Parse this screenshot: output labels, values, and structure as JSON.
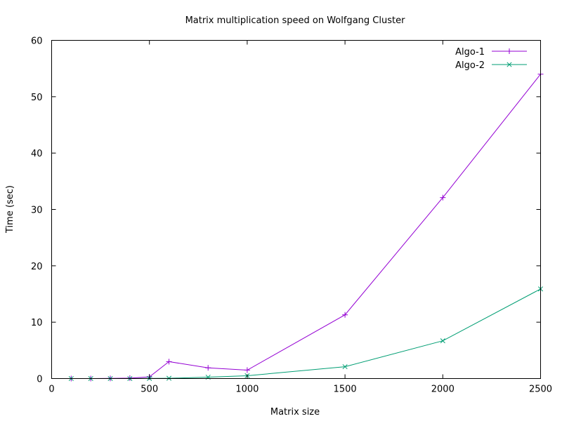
{
  "chart_data": {
    "type": "line",
    "title": "Matrix multiplication speed on Wolfgang Cluster",
    "xlabel": "Matrix size",
    "ylabel": "Time (sec)",
    "xlim": [
      0,
      2500
    ],
    "ylim": [
      0,
      60
    ],
    "xticks": [
      0,
      500,
      1000,
      1500,
      2000,
      2500
    ],
    "yticks": [
      0,
      10,
      20,
      30,
      40,
      50,
      60
    ],
    "grid": false,
    "legend_position": "top-right",
    "series": [
      {
        "name": "Algo-1",
        "color": "#9400d3",
        "marker": "plus",
        "x": [
          100,
          200,
          300,
          400,
          500,
          600,
          800,
          1000,
          1500,
          2000,
          2500
        ],
        "y": [
          0.0,
          0.0,
          0.02,
          0.08,
          0.3,
          3.0,
          1.9,
          1.5,
          11.3,
          32.1,
          54.0
        ]
      },
      {
        "name": "Algo-2",
        "color": "#009e73",
        "marker": "cross",
        "x": [
          100,
          200,
          300,
          400,
          500,
          600,
          800,
          1000,
          1500,
          2000,
          2500
        ],
        "y": [
          0.0,
          0.0,
          0.0,
          0.0,
          0.02,
          0.05,
          0.25,
          0.5,
          2.1,
          6.7,
          15.9
        ]
      }
    ]
  }
}
